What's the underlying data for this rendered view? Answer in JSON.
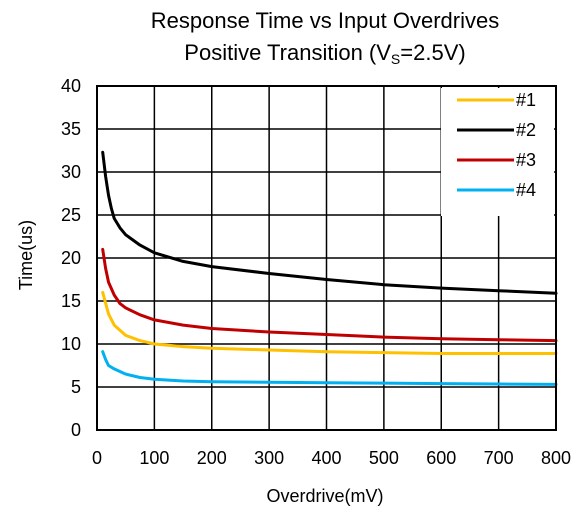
{
  "chart_data": {
    "type": "line",
    "title_line1": "Response Time vs Input Overdrives",
    "title_line2_prefix": "Positive Transition (V",
    "title_line2_sub": "S",
    "title_line2_suffix": "=2.5V)",
    "xlabel": "Overdrive(mV)",
    "ylabel": "Time(us)",
    "xlim": [
      0,
      800
    ],
    "ylim": [
      0,
      40
    ],
    "xticks": [
      0,
      100,
      200,
      300,
      400,
      500,
      600,
      700,
      800
    ],
    "yticks": [
      0,
      5,
      10,
      15,
      20,
      25,
      30,
      35,
      40
    ],
    "grid": true,
    "legend_position": "top-right",
    "series": [
      {
        "name": "#1",
        "color": "#FFC000",
        "x": [
          10,
          20,
          30,
          50,
          75,
          100,
          150,
          200,
          300,
          400,
          500,
          600,
          700,
          800
        ],
        "y": [
          16,
          13.5,
          12.2,
          11.0,
          10.4,
          10.0,
          9.7,
          9.5,
          9.3,
          9.1,
          9.0,
          8.9,
          8.9,
          8.9
        ]
      },
      {
        "name": "#2",
        "color": "#000000",
        "x": [
          10,
          15,
          20,
          25,
          30,
          40,
          50,
          75,
          100,
          150,
          200,
          300,
          400,
          500,
          600,
          700,
          800
        ],
        "y": [
          32.3,
          29.5,
          27.3,
          25.8,
          24.6,
          23.5,
          22.7,
          21.5,
          20.6,
          19.6,
          19.0,
          18.2,
          17.5,
          16.9,
          16.5,
          16.2,
          15.9
        ]
      },
      {
        "name": "#3",
        "color": "#C00000",
        "x": [
          10,
          15,
          20,
          30,
          40,
          50,
          75,
          100,
          150,
          200,
          300,
          400,
          500,
          600,
          700,
          800
        ],
        "y": [
          21,
          18.8,
          17.2,
          15.7,
          14.7,
          14.2,
          13.4,
          12.8,
          12.2,
          11.8,
          11.4,
          11.1,
          10.8,
          10.6,
          10.5,
          10.4
        ]
      },
      {
        "name": "#4",
        "color": "#00B0F0",
        "x": [
          10,
          15,
          20,
          30,
          50,
          75,
          100,
          150,
          200,
          300,
          400,
          500,
          600,
          700,
          800
        ],
        "y": [
          9.1,
          8.2,
          7.5,
          7.1,
          6.5,
          6.1,
          5.9,
          5.7,
          5.6,
          5.55,
          5.5,
          5.45,
          5.4,
          5.35,
          5.3
        ]
      }
    ]
  }
}
